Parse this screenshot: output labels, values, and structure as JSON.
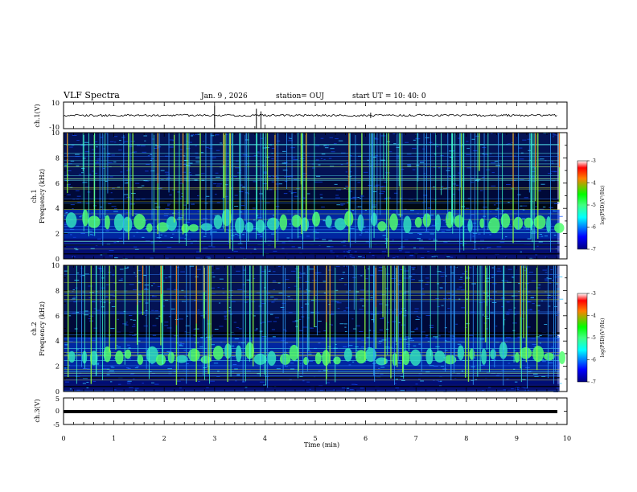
{
  "header": {
    "title": "VLF Spectra",
    "date": "Jan. 9 , 2026",
    "station": "station= OUJ",
    "start_ut": "start UT = 10: 40: 0"
  },
  "chart_data": [
    {
      "type": "line",
      "name": "ch1-waveform",
      "ylabel": "ch.1(V)",
      "ylim": [
        -10,
        10
      ],
      "ytick_labels": [
        "10",
        "-10"
      ],
      "xlim": [
        0,
        10
      ],
      "baseline": 0
    },
    {
      "type": "heatmap",
      "name": "ch1-spectrogram",
      "ylabel": "ch.1\nFrequency (kHz)",
      "ylabel_parts": [
        "ch.1",
        "Frequency (kHz)"
      ],
      "ylim": [
        0,
        10
      ],
      "ytick_labels": [
        "0",
        "2",
        "4",
        "6",
        "8",
        "10"
      ],
      "xlim": [
        0,
        9.85
      ],
      "colorbar": {
        "label": "log(PSD)(V²/Hz)",
        "range": [
          -7,
          -3
        ],
        "tick_labels": [
          "-3",
          "-4",
          "-5",
          "-6",
          "-7"
        ]
      },
      "chorus_band_khz": [
        1.8,
        3.6
      ],
      "emission_spacing_min": 0.22
    },
    {
      "type": "heatmap",
      "name": "ch2-spectrogram",
      "ylabel": "ch.2\nFrequency (kHz)",
      "ylabel_parts": [
        "ch.2",
        "Frequency (kHz)"
      ],
      "ylim": [
        0,
        10
      ],
      "ytick_labels": [
        "0",
        "2",
        "4",
        "6",
        "8",
        "10"
      ],
      "xlim": [
        0,
        9.85
      ],
      "colorbar": {
        "label": "log(PSD)(V²/Hz)",
        "range": [
          -7,
          -3
        ],
        "tick_labels": [
          "-3",
          "-4",
          "-5",
          "-6",
          "-7"
        ]
      },
      "chorus_band_khz": [
        1.8,
        4.0
      ],
      "emission_spacing_min": 0.22
    },
    {
      "type": "line",
      "name": "ch3-waveform",
      "ylabel": "ch.3(V)",
      "ylim": [
        -5,
        5
      ],
      "ytick_labels": [
        "5",
        "0",
        "-5"
      ],
      "xlim": [
        0,
        10
      ],
      "baseline": 0
    }
  ],
  "x_axis": {
    "label": "Time (min)",
    "range": [
      0,
      10
    ],
    "tick_labels": [
      "0",
      "1",
      "2",
      "3",
      "4",
      "5",
      "6",
      "7",
      "8",
      "9",
      "10"
    ]
  }
}
